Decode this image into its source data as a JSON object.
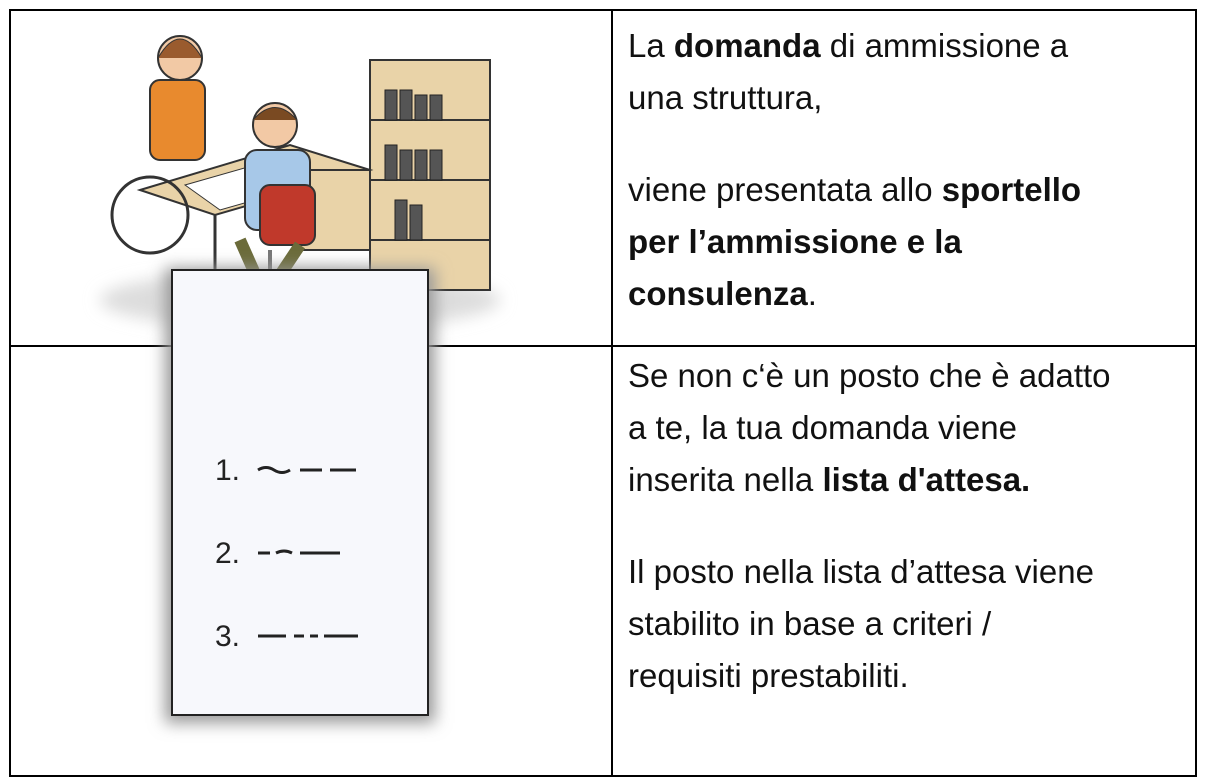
{
  "table": {
    "rows": [
      {
        "text": [
          [
            [
              {
                "text": "La "
              },
              {
                "text": "domanda",
                "bold": true
              },
              {
                "text": " di ammissione a"
              }
            ],
            [
              {
                "text": "una struttura,"
              }
            ]
          ],
          [
            [
              {
                "text": "viene presentata allo "
              },
              {
                "text": "sportello",
                "bold": true
              }
            ],
            [
              {
                "text": "per l’ammissione e la",
                "bold": true
              }
            ],
            [
              {
                "text": "consulenza",
                "bold": true
              },
              {
                "text": "."
              }
            ]
          ]
        ]
      },
      {
        "list_numbers": [
          "1.",
          "2.",
          "3."
        ],
        "text": [
          [
            [
              {
                "text": "Se non c‘è un posto che è adatto"
              }
            ],
            [
              {
                "text": "a te, la tua domanda viene"
              }
            ],
            [
              {
                "text": "inserita nella "
              },
              {
                "text": "lista d'attesa.",
                "bold": true
              }
            ]
          ],
          [
            [
              {
                "text": "Il posto nella lista d’attesa viene"
              }
            ],
            [
              {
                "text": "stabilito in base a criteri /"
              }
            ],
            [
              {
                "text": "requisiti prestabiliti."
              }
            ]
          ]
        ]
      }
    ]
  }
}
